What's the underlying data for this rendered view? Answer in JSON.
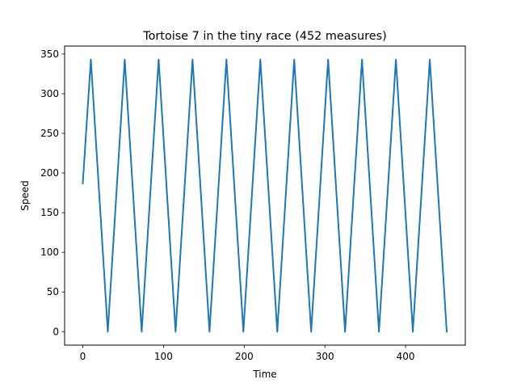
{
  "chart_data": {
    "type": "line",
    "title": "Tortoise 7 in the tiny race (452 measures)",
    "xlabel": "Time",
    "ylabel": "Speed",
    "xlim": [
      -22.5,
      474
    ],
    "ylim": [
      -17,
      360
    ],
    "xticks": [
      0,
      100,
      200,
      300,
      400
    ],
    "yticks": [
      0,
      50,
      100,
      150,
      200,
      250,
      300,
      350
    ],
    "grid": false,
    "series": [
      {
        "name": "",
        "color": "#1f77b4",
        "points": [
          [
            0,
            187
          ],
          [
            10,
            343
          ],
          [
            31,
            0
          ],
          [
            52,
            343
          ],
          [
            73,
            0
          ],
          [
            94,
            343
          ],
          [
            115,
            0
          ],
          [
            136,
            343
          ],
          [
            157,
            0
          ],
          [
            178,
            343
          ],
          [
            199,
            0
          ],
          [
            220,
            343
          ],
          [
            241,
            0
          ],
          [
            262,
            343
          ],
          [
            283,
            0
          ],
          [
            304,
            343
          ],
          [
            325,
            0
          ],
          [
            346,
            343
          ],
          [
            367,
            0
          ],
          [
            388,
            343
          ],
          [
            409,
            0
          ],
          [
            430,
            343
          ],
          [
            451,
            0
          ]
        ]
      }
    ]
  }
}
